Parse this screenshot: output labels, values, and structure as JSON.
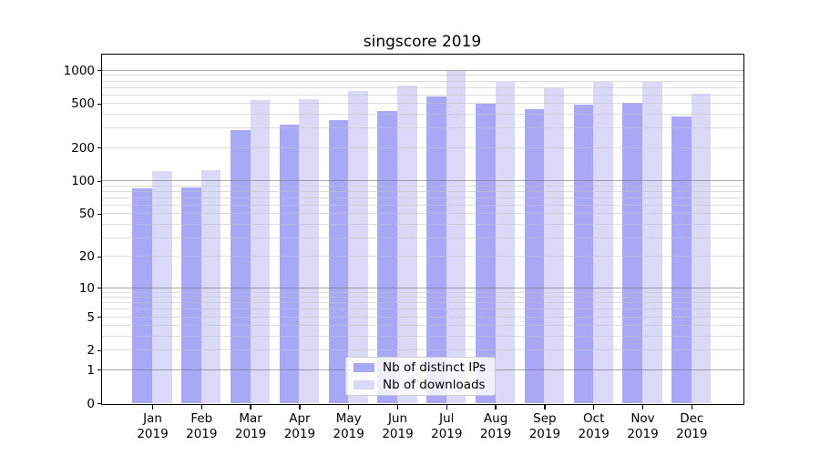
{
  "chart_data": {
    "type": "bar",
    "title": "singscore 2019",
    "categories": [
      "Jan",
      "Feb",
      "Mar",
      "Apr",
      "May",
      "Jun",
      "Jul",
      "Aug",
      "Sep",
      "Oct",
      "Nov",
      "Dec"
    ],
    "category_year": "2019",
    "series": [
      {
        "name": "Nb of distinct IPs",
        "color": "#a8a8f6",
        "values": [
          85,
          87,
          290,
          325,
          355,
          430,
          580,
          500,
          445,
          485,
          505,
          380
        ]
      },
      {
        "name": "Nb of downloads",
        "color": "#dadaf8",
        "values": [
          123,
          125,
          540,
          550,
          645,
          725,
          985,
          780,
          705,
          780,
          790,
          615
        ]
      }
    ],
    "yscale": "log1p",
    "ylim": [
      0,
      1385
    ],
    "ytick_values": [
      0,
      1,
      2,
      5,
      10,
      20,
      50,
      100,
      200,
      500,
      1000
    ],
    "grid": {
      "on": true,
      "major_values": [
        1,
        10,
        100,
        1000
      ],
      "minor_values": [
        2,
        3,
        4,
        5,
        6,
        7,
        8,
        9,
        20,
        30,
        40,
        50,
        60,
        70,
        80,
        90,
        200,
        300,
        400,
        500,
        600,
        700,
        800,
        900
      ]
    },
    "legend_position": "lower-center",
    "colors": {
      "grid_major": "#b0b0b0",
      "grid_minor": "#dedede",
      "axis": "#000000"
    }
  }
}
